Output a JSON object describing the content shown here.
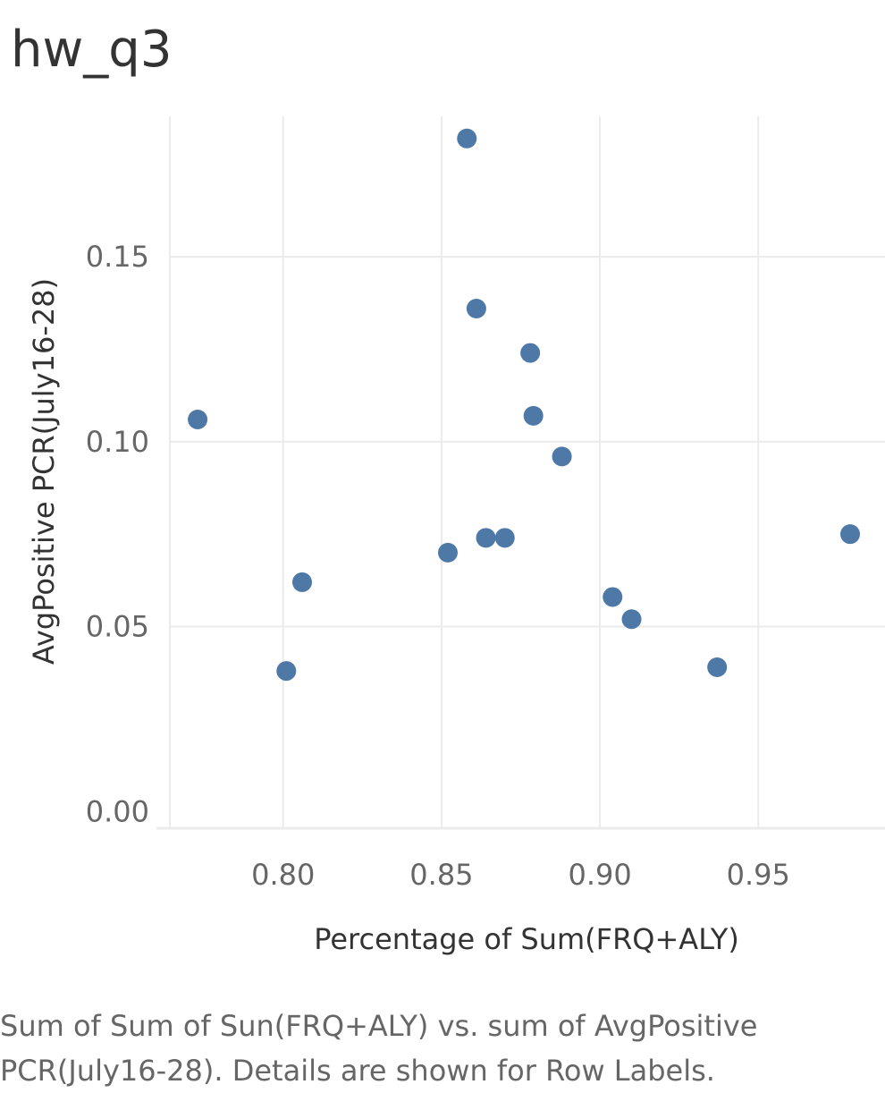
{
  "chart_data": {
    "type": "scatter",
    "title": "hw_q3",
    "xlabel": "Percentage of Sum(FRQ+ALY)",
    "ylabel": "AvgPositive PCR(July16-28)",
    "xlim": [
      0.76,
      0.99
    ],
    "ylim": [
      -0.0055,
      0.188
    ],
    "xticks": [
      0.8,
      0.85,
      0.9,
      0.95
    ],
    "xtick_labels": [
      "0.80",
      "0.85",
      "0.90",
      "0.95"
    ],
    "yticks": [
      0.0,
      0.05,
      0.1,
      0.15
    ],
    "ytick_labels": [
      "0.00",
      "0.05",
      "0.10",
      "0.15"
    ],
    "grid": true,
    "marker_color": "#4e79a7",
    "points": [
      {
        "x": 0.858,
        "y": 0.182
      },
      {
        "x": 0.861,
        "y": 0.136
      },
      {
        "x": 0.878,
        "y": 0.124
      },
      {
        "x": 0.879,
        "y": 0.107
      },
      {
        "x": 0.773,
        "y": 0.106
      },
      {
        "x": 0.888,
        "y": 0.096
      },
      {
        "x": 0.979,
        "y": 0.075
      },
      {
        "x": 0.864,
        "y": 0.074
      },
      {
        "x": 0.87,
        "y": 0.074
      },
      {
        "x": 0.852,
        "y": 0.07
      },
      {
        "x": 0.806,
        "y": 0.062
      },
      {
        "x": 0.904,
        "y": 0.058
      },
      {
        "x": 0.91,
        "y": 0.052
      },
      {
        "x": 0.801,
        "y": 0.038
      },
      {
        "x": 0.937,
        "y": 0.039
      }
    ]
  },
  "caption": {
    "line1": "Sum of Sum of Sun(FRQ+ALY) vs. sum of AvgPositive",
    "line2": "PCR(July16-28).  Details are shown for Row Labels."
  }
}
